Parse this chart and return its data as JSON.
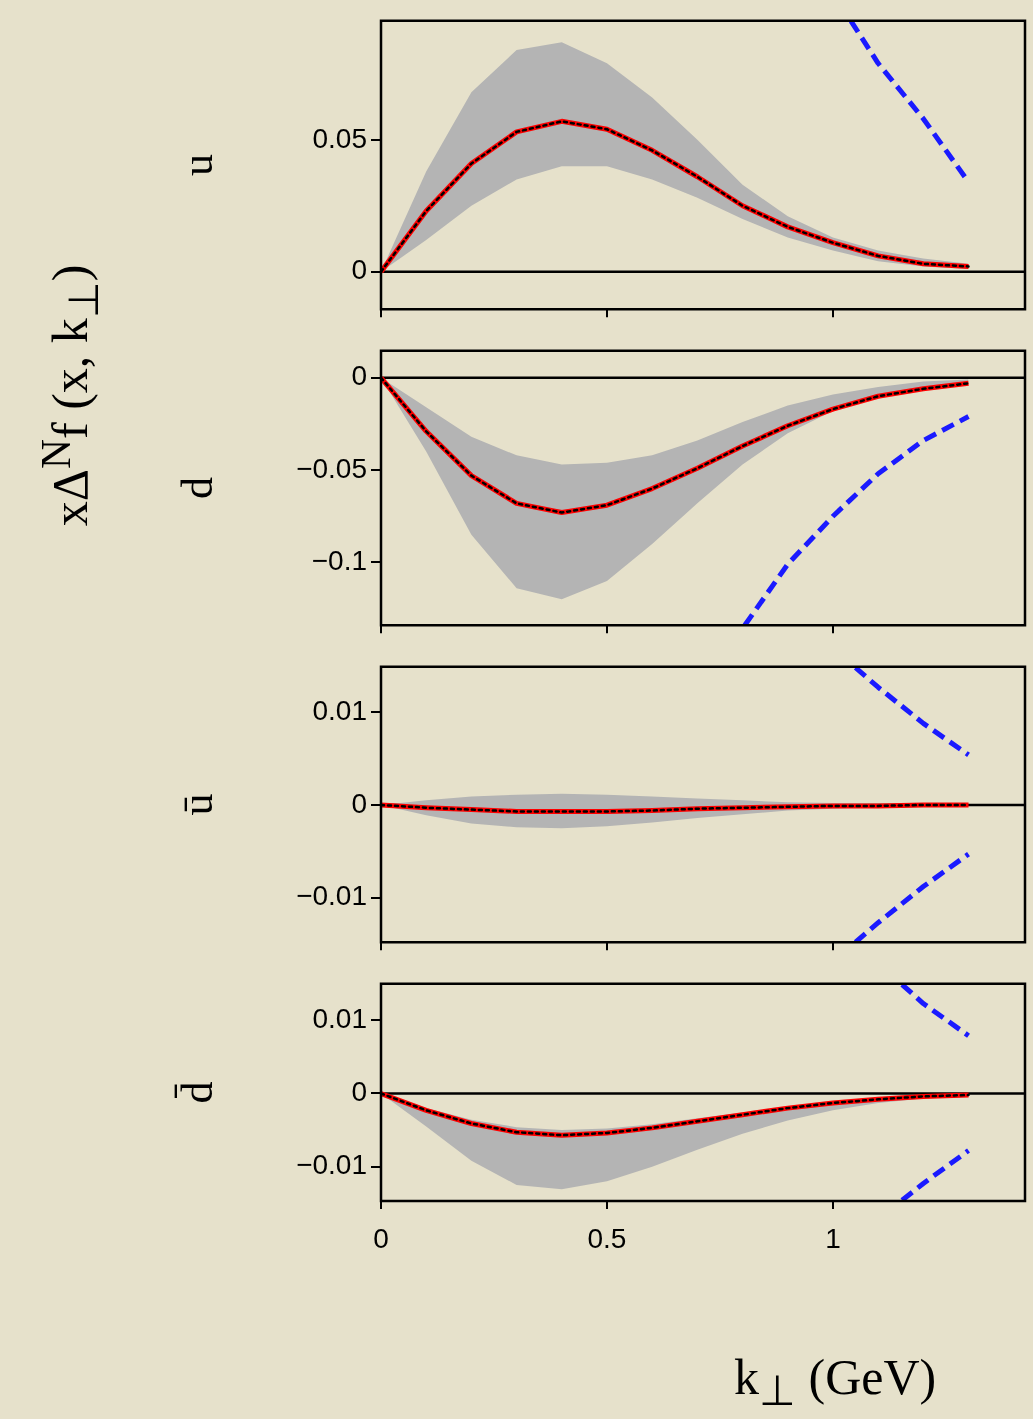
{
  "chart_data": [
    {
      "type": "line",
      "ylabel": "u",
      "annotations": [
        "xΔ$^{N}$f (x, k$_{⊥}$)"
      ],
      "xlim": [
        0,
        1.425
      ],
      "xticks": [
        {
          "value": 0,
          "label": null
        },
        {
          "value": 0.5,
          "label": null
        },
        {
          "value": 1,
          "label": null
        }
      ],
      "ylim": [
        -0.0142,
        0.0951
      ],
      "yticks": [
        0,
        0.05
      ],
      "tick_labels": "y",
      "marker": "none",
      "grid": false,
      "legend": false,
      "ref_lines": [
        {
          "axis": "y",
          "value": 0,
          "color": "#000000"
        }
      ],
      "series": [
        {
          "color": "#ff0000",
          "line_style": "solid",
          "x": [
            0,
            0.1,
            0.2,
            0.3,
            0.4,
            0.5,
            0.6,
            0.7,
            0.8,
            0.9,
            1.0,
            1.1,
            1.2,
            1.3
          ],
          "values": [
            0,
            0.023,
            0.041,
            0.053,
            0.057,
            0.054,
            0.046,
            0.036,
            0.025,
            0.017,
            0.011,
            0.006,
            0.003,
            0.002
          ],
          "lower": [
            0,
            0.012,
            0.025,
            0.035,
            0.04,
            0.04,
            0.035,
            0.028,
            0.02,
            0.013,
            0.008,
            0.004,
            0.002,
            0.001
          ],
          "upper": [
            0,
            0.038,
            0.068,
            0.084,
            0.087,
            0.079,
            0.066,
            0.05,
            0.033,
            0.021,
            0.013,
            0.008,
            0.005,
            0.003
          ]
        },
        {
          "color": "#000000",
          "line_style": "dotted",
          "x": [
            0,
            0.1,
            0.2,
            0.3,
            0.4,
            0.5,
            0.6,
            0.7,
            0.8,
            0.9,
            1.0,
            1.1,
            1.2,
            1.3
          ],
          "values": [
            0,
            0.023,
            0.041,
            0.053,
            0.057,
            0.054,
            0.046,
            0.036,
            0.025,
            0.017,
            0.011,
            0.006,
            0.003,
            0.002
          ]
        },
        {
          "color": "#1a1aff",
          "line_style": "dashed",
          "x": [
            1.04,
            1.1,
            1.2,
            1.3
          ],
          "values": [
            0.095,
            0.079,
            0.058,
            0.034
          ]
        }
      ]
    },
    {
      "type": "line",
      "ylabel": "d",
      "xlim": [
        0,
        1.425
      ],
      "xticks": [
        {
          "value": 0,
          "label": null
        },
        {
          "value": 0.5,
          "label": null
        },
        {
          "value": 1,
          "label": null
        }
      ],
      "ylim": [
        -0.134,
        0.0146
      ],
      "yticks": [
        0,
        {
          "value": -0.05,
          "label": "−0.05"
        },
        {
          "value": -0.1,
          "label": "−0.1"
        }
      ],
      "tick_labels": "y",
      "marker": "none",
      "grid": false,
      "legend": false,
      "ref_lines": [
        {
          "axis": "y",
          "value": 0,
          "color": "#000000"
        }
      ],
      "series": [
        {
          "color": "#ff0000",
          "line_style": "solid",
          "x": [
            0,
            0.1,
            0.2,
            0.3,
            0.4,
            0.5,
            0.6,
            0.7,
            0.8,
            0.9,
            1.0,
            1.1,
            1.2,
            1.3
          ],
          "values": [
            0,
            -0.029,
            -0.053,
            -0.068,
            -0.073,
            -0.069,
            -0.06,
            -0.049,
            -0.037,
            -0.026,
            -0.017,
            -0.01,
            -0.006,
            -0.003
          ],
          "lower": [
            0,
            -0.04,
            -0.085,
            -0.114,
            -0.12,
            -0.11,
            -0.09,
            -0.068,
            -0.047,
            -0.03,
            -0.018,
            -0.01,
            -0.005,
            -0.003
          ],
          "upper": [
            0,
            -0.016,
            -0.032,
            -0.042,
            -0.047,
            -0.046,
            -0.042,
            -0.034,
            -0.024,
            -0.015,
            -0.009,
            -0.005,
            -0.002,
            -0.001
          ]
        },
        {
          "color": "#000000",
          "line_style": "dotted",
          "x": [
            0,
            0.1,
            0.2,
            0.3,
            0.4,
            0.5,
            0.6,
            0.7,
            0.8,
            0.9,
            1.0,
            1.1,
            1.2,
            1.3
          ],
          "values": [
            0,
            -0.029,
            -0.053,
            -0.068,
            -0.073,
            -0.069,
            -0.06,
            -0.049,
            -0.037,
            -0.026,
            -0.017,
            -0.01,
            -0.006,
            -0.003
          ]
        },
        {
          "color": "#1a1aff",
          "line_style": "dashed",
          "x": [
            0.805,
            0.9,
            1.0,
            1.1,
            1.2,
            1.3
          ],
          "values": [
            -0.134,
            -0.101,
            -0.075,
            -0.052,
            -0.034,
            -0.021
          ]
        }
      ]
    },
    {
      "type": "line",
      "ylabel": "ū",
      "xlim": [
        0,
        1.425
      ],
      "xticks": [
        {
          "value": 0,
          "label": null
        },
        {
          "value": 0.5,
          "label": null
        },
        {
          "value": 1,
          "label": null
        }
      ],
      "ylim": [
        -0.0148,
        0.0149
      ],
      "yticks": [
        {
          "value": -0.01,
          "label": "−0.01"
        },
        0,
        0.01
      ],
      "tick_labels": "y",
      "marker": "none",
      "grid": false,
      "legend": false,
      "ref_lines": [
        {
          "axis": "y",
          "value": 0,
          "color": "#000000"
        }
      ],
      "series": [
        {
          "color": "#ff0000",
          "line_style": "solid",
          "x": [
            0,
            0.1,
            0.2,
            0.3,
            0.4,
            0.5,
            0.6,
            0.7,
            0.8,
            0.9,
            1.0,
            1.1,
            1.2,
            1.3
          ],
          "values": [
            0,
            -0.0003,
            -0.0005,
            -0.0007,
            -0.0007,
            -0.0007,
            -0.0006,
            -0.0004,
            -0.0003,
            -0.0002,
            -0.0001,
            -0.0001,
            0,
            0
          ],
          "lower": [
            0,
            -0.0011,
            -0.002,
            -0.0024,
            -0.0025,
            -0.0023,
            -0.0019,
            -0.0014,
            -0.001,
            -0.0006,
            -0.0004,
            -0.0002,
            -0.0001,
            0
          ],
          "upper": [
            0,
            0.0005,
            0.0009,
            0.0011,
            0.0012,
            0.0011,
            0.0009,
            0.0007,
            0.0005,
            0.0003,
            0.0002,
            0.0001,
            0,
            0
          ]
        },
        {
          "color": "#000000",
          "line_style": "dotted",
          "x": [
            0,
            0.1,
            0.2,
            0.3,
            0.4,
            0.5,
            0.6,
            0.7,
            0.8,
            0.9,
            1.0,
            1.1,
            1.2,
            1.3
          ],
          "values": [
            0,
            -0.0003,
            -0.0005,
            -0.0007,
            -0.0007,
            -0.0007,
            -0.0006,
            -0.0004,
            -0.0003,
            -0.0002,
            -0.0001,
            -0.0001,
            0,
            0
          ]
        },
        {
          "color": "#1a1aff",
          "line_style": "dashed",
          "x": [
            1.05,
            1.1,
            1.2,
            1.3
          ],
          "values": [
            0.0148,
            0.0127,
            0.0088,
            0.0054
          ]
        },
        {
          "color": "#1a1aff",
          "line_style": "dashed",
          "x": [
            1.05,
            1.1,
            1.2,
            1.3
          ],
          "values": [
            -0.0148,
            -0.0127,
            -0.0088,
            -0.0053
          ]
        }
      ]
    },
    {
      "type": "line",
      "ylabel": "d̄",
      "xlabel": "k$_{⊥}$ (GeV)",
      "xlim": [
        0,
        1.425
      ],
      "xticks": [
        0,
        0.5,
        1
      ],
      "ylim": [
        -0.0147,
        0.015
      ],
      "yticks": [
        {
          "value": -0.01,
          "label": "−0.01"
        },
        0,
        0.01
      ],
      "marker": "none",
      "grid": false,
      "legend": false,
      "ref_lines": [
        {
          "axis": "y",
          "value": 0,
          "color": "#000000"
        }
      ],
      "series": [
        {
          "color": "#ff0000",
          "line_style": "solid",
          "x": [
            0,
            0.1,
            0.2,
            0.3,
            0.4,
            0.5,
            0.6,
            0.7,
            0.8,
            0.9,
            1.0,
            1.1,
            1.2,
            1.3
          ],
          "values": [
            0,
            -0.0023,
            -0.0041,
            -0.0053,
            -0.0057,
            -0.0054,
            -0.0047,
            -0.0038,
            -0.0029,
            -0.002,
            -0.0013,
            -0.0008,
            -0.0004,
            -0.0002
          ],
          "lower": [
            0,
            -0.0045,
            -0.0092,
            -0.0125,
            -0.0131,
            -0.012,
            -0.01,
            -0.0077,
            -0.0055,
            -0.0037,
            -0.0023,
            -0.0013,
            -0.0007,
            -0.0004
          ],
          "upper": [
            0,
            -0.002,
            -0.0036,
            -0.0046,
            -0.005,
            -0.0048,
            -0.0042,
            -0.0034,
            -0.0026,
            -0.0018,
            -0.0011,
            -0.0006,
            -0.0003,
            -0.0001
          ]
        },
        {
          "color": "#000000",
          "line_style": "dotted",
          "x": [
            0,
            0.1,
            0.2,
            0.3,
            0.4,
            0.5,
            0.6,
            0.7,
            0.8,
            0.9,
            1.0,
            1.1,
            1.2,
            1.3
          ],
          "values": [
            0,
            -0.0023,
            -0.0041,
            -0.0053,
            -0.0057,
            -0.0054,
            -0.0047,
            -0.0038,
            -0.0029,
            -0.002,
            -0.0013,
            -0.0008,
            -0.0004,
            -0.0002
          ]
        },
        {
          "color": "#1a1aff",
          "line_style": "dashed",
          "x": [
            1.153,
            1.2,
            1.3
          ],
          "values": [
            0.0149,
            0.0123,
            0.0079
          ]
        },
        {
          "color": "#1a1aff",
          "line_style": "dashed",
          "x": [
            1.153,
            1.2,
            1.3
          ],
          "values": [
            -0.0146,
            -0.0123,
            -0.0078
          ]
        }
      ]
    }
  ]
}
